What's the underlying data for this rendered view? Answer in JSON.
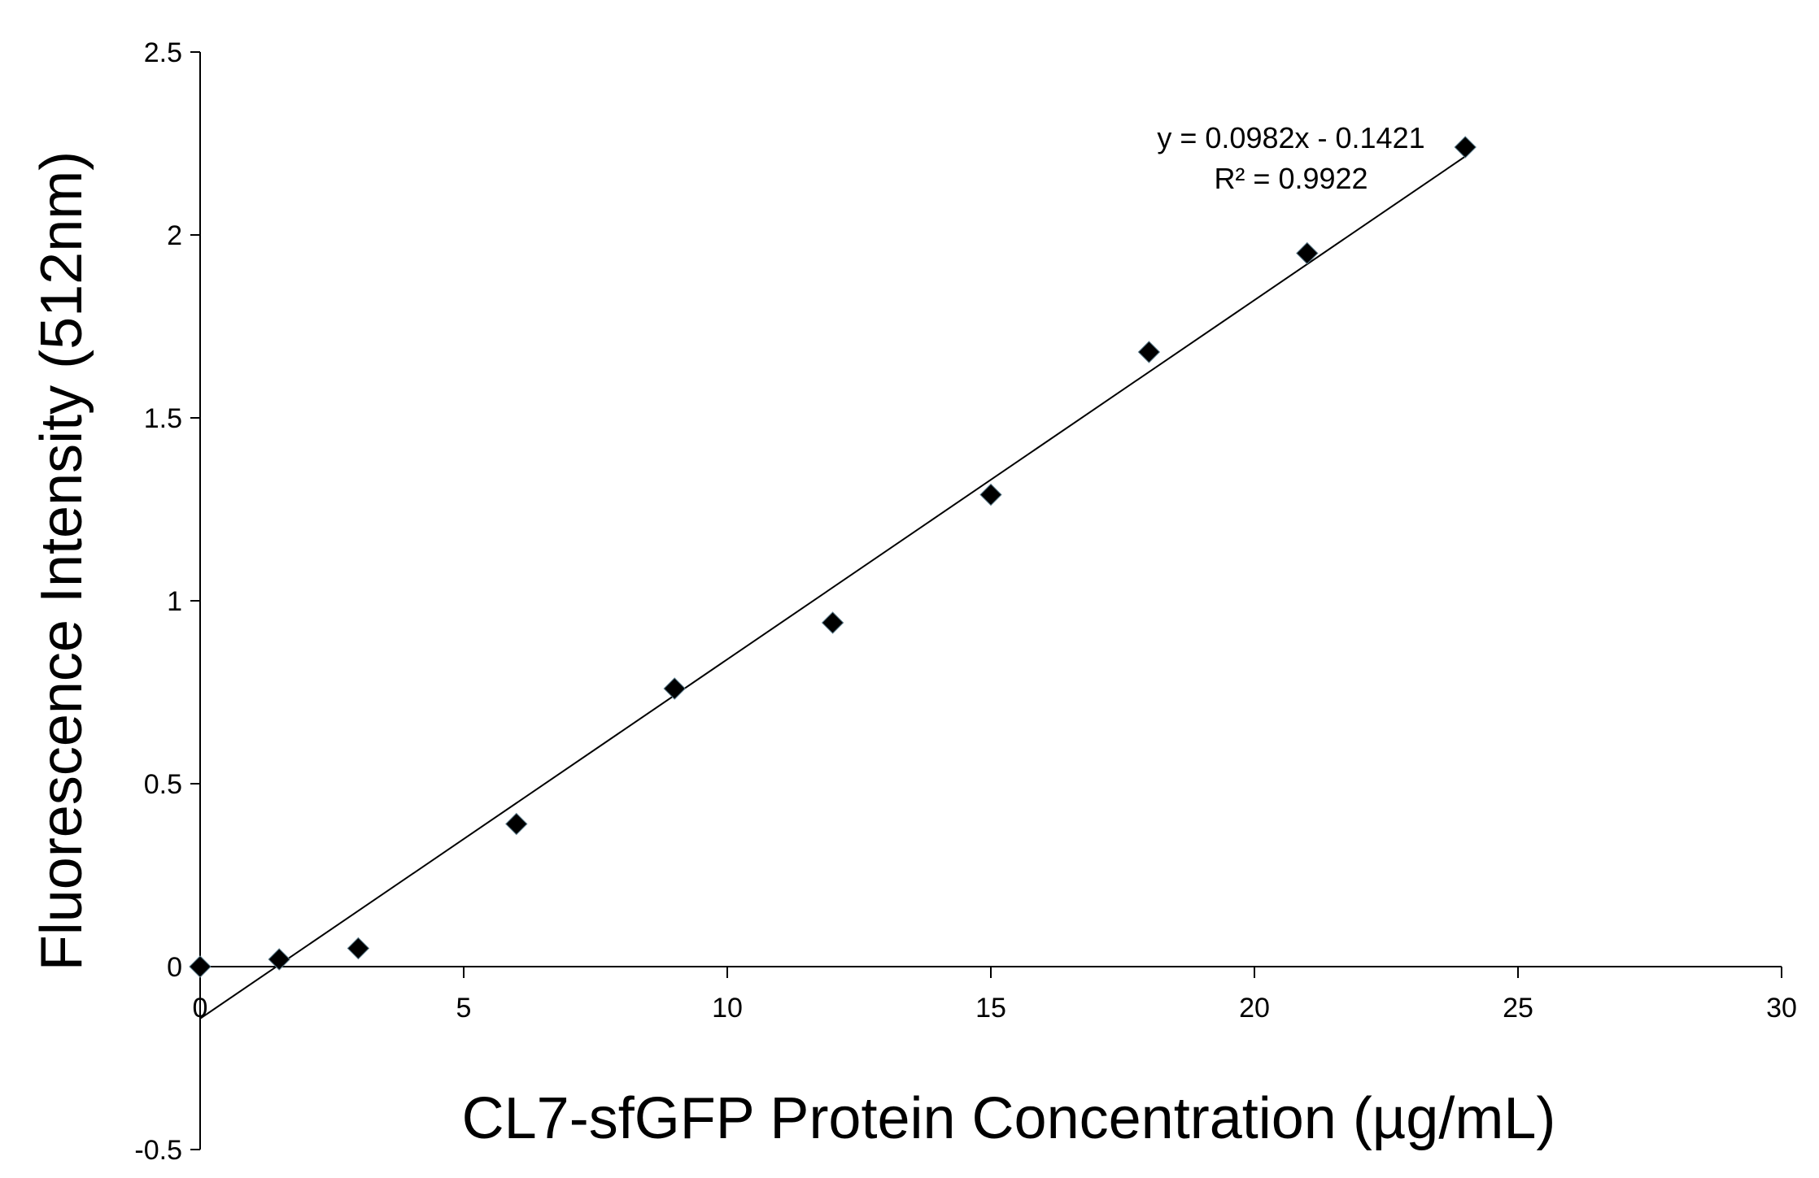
{
  "chart_data": {
    "type": "scatter",
    "title": "",
    "xlabel": "CL7-sfGFP Protein Concentration (µg/mL)",
    "ylabel": "Fluorescence Intensity (512nm)",
    "xlim": [
      0,
      30
    ],
    "ylim": [
      -0.5,
      2.5
    ],
    "x_ticks": [
      0,
      5,
      10,
      15,
      20,
      25,
      30
    ],
    "y_ticks": [
      -0.5,
      0,
      0.5,
      1,
      1.5,
      2,
      2.5
    ],
    "x_tick_labels": [
      "0",
      "5",
      "10",
      "15",
      "20",
      "25",
      "30"
    ],
    "y_tick_labels": [
      "-0.5",
      "0",
      "0.5",
      "1",
      "1.5",
      "2",
      "2.5"
    ],
    "grid": false,
    "legend": "none",
    "marker": "diamond",
    "marker_color": "#000000",
    "series": [
      {
        "x": [
          0,
          1.5,
          3,
          6,
          9,
          12,
          15,
          18,
          21,
          24
        ],
        "y": [
          0,
          0.02,
          0.05,
          0.39,
          0.76,
          0.94,
          1.29,
          1.68,
          1.95,
          2.24
        ]
      }
    ],
    "trendline": {
      "slope": 0.0982,
      "intercept": -0.1421,
      "x_range": [
        0,
        24
      ],
      "equation_label": "y = 0.0982x - 0.1421",
      "r2_label": "R² = 0.9922"
    }
  }
}
